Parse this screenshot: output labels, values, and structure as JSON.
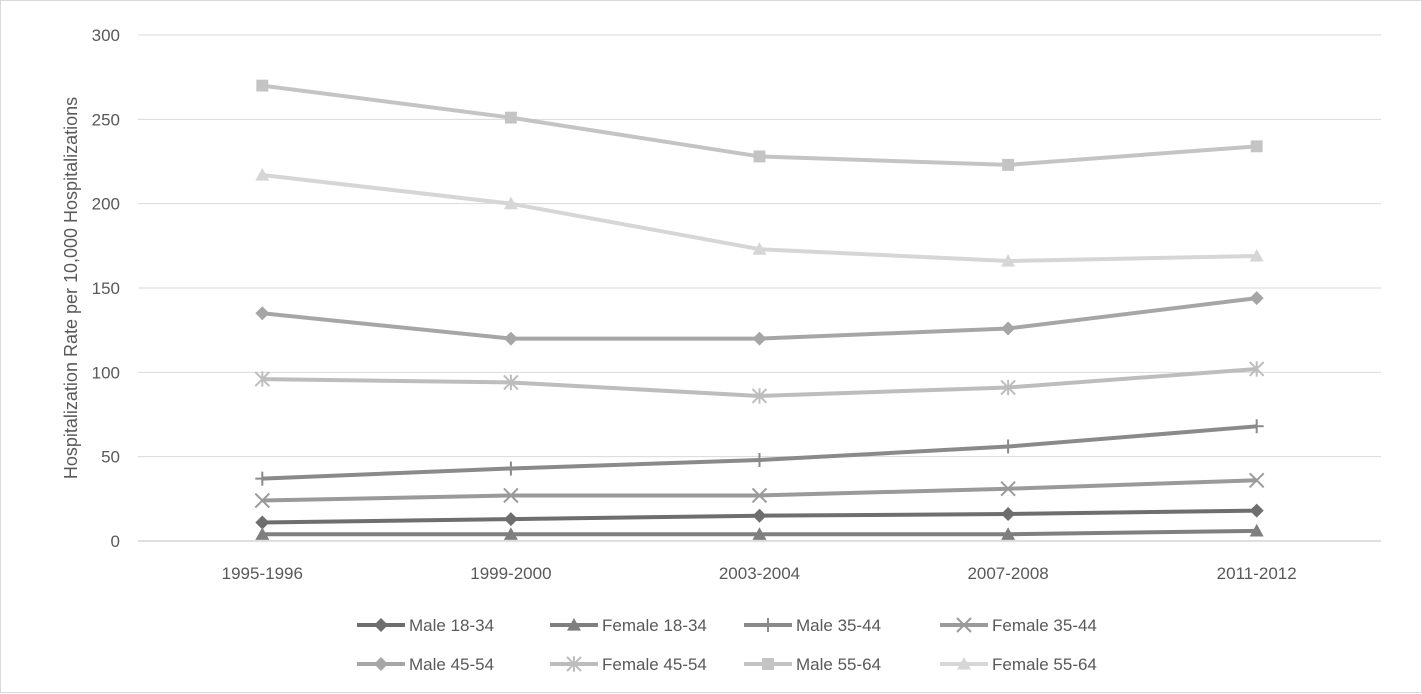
{
  "chart_data": {
    "type": "line",
    "title": "",
    "xlabel": "",
    "ylabel": "Hospitalization Rate per 10,000 Hospitalizations",
    "categories": [
      "1995-1996",
      "1999-2000",
      "2003-2004",
      "2007-2008",
      "2011-2012"
    ],
    "ylim": [
      0,
      300
    ],
    "yticks": [
      0,
      50,
      100,
      150,
      200,
      250,
      300
    ],
    "grid": "horizontal",
    "legend_position": "bottom",
    "series": [
      {
        "name": "Male 18-34",
        "values": [
          11,
          13,
          15,
          16,
          18
        ],
        "color": "#6e6e6e",
        "marker": "diamond"
      },
      {
        "name": "Female 18-34",
        "values": [
          4,
          4,
          4,
          4,
          6
        ],
        "color": "#7f7f7f",
        "marker": "triangle"
      },
      {
        "name": "Male 35-44",
        "values": [
          37,
          43,
          48,
          56,
          68
        ],
        "color": "#8a8a8a",
        "marker": "plus"
      },
      {
        "name": "Female 35-44",
        "values": [
          24,
          27,
          27,
          31,
          36
        ],
        "color": "#9a9a9a",
        "marker": "x"
      },
      {
        "name": "Male 45-54",
        "values": [
          135,
          120,
          120,
          126,
          144
        ],
        "color": "#a6a6a6",
        "marker": "diamond"
      },
      {
        "name": "Female 45-54",
        "values": [
          96,
          94,
          86,
          91,
          102
        ],
        "color": "#bdbdbd",
        "marker": "asterisk"
      },
      {
        "name": "Male 55-64",
        "values": [
          270,
          251,
          228,
          223,
          234
        ],
        "color": "#c4c4c4",
        "marker": "square"
      },
      {
        "name": "Female 55-64",
        "values": [
          217,
          200,
          173,
          166,
          169
        ],
        "color": "#d6d6d6",
        "marker": "triangle"
      }
    ]
  }
}
